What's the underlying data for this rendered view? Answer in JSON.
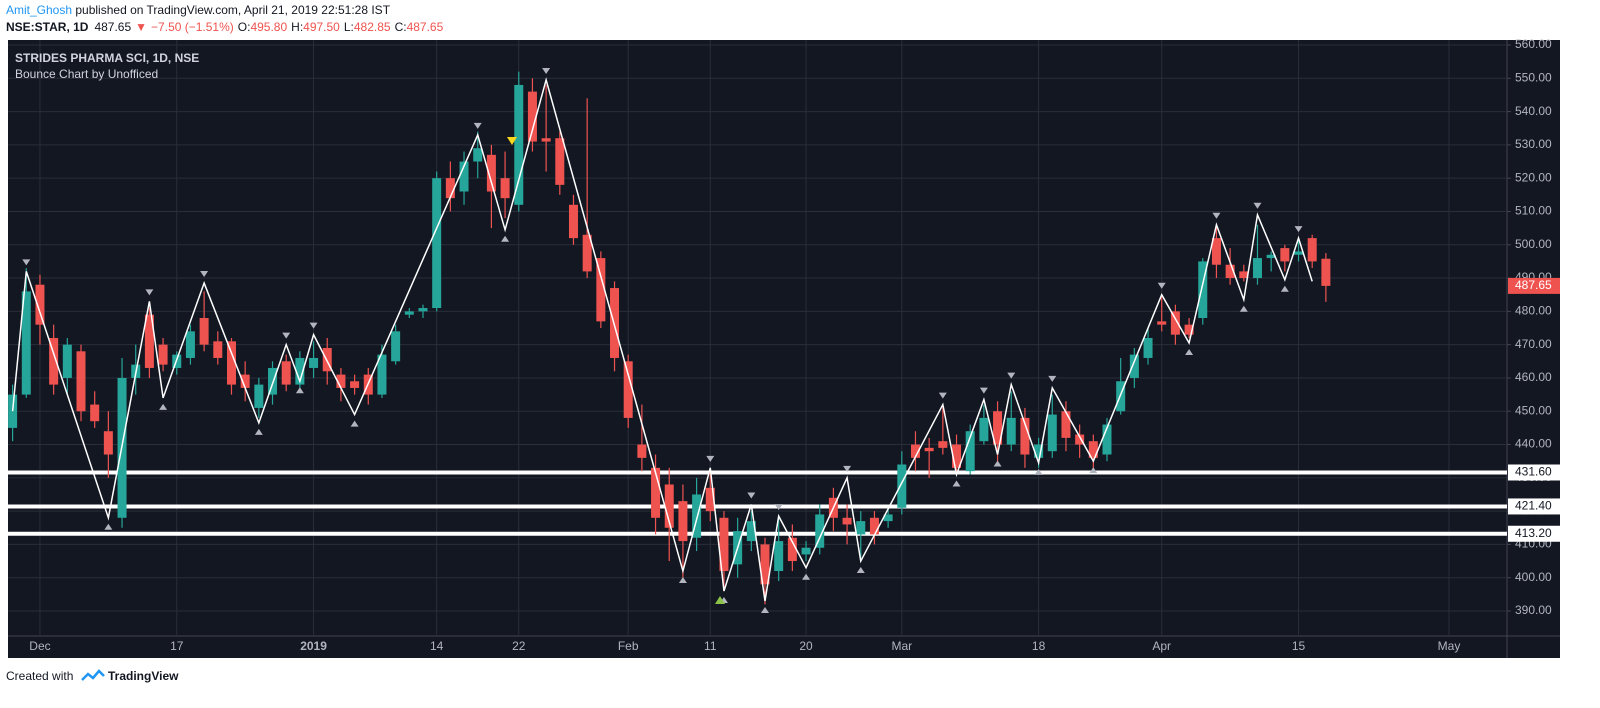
{
  "header": {
    "author": "Amit_Ghosh",
    "published": " published on TradingView.com, April 21, 2019 22:51:28 IST",
    "symbol": "NSE:STAR, 1D",
    "last": "487.65",
    "arrow": "▼",
    "change": "−7.50 (−1.51%)",
    "ohlc": [
      {
        "label": "O:",
        "value": "495.80"
      },
      {
        "label": "H:",
        "value": "497.50"
      },
      {
        "label": "L:",
        "value": "482.85"
      },
      {
        "label": "C:",
        "value": "487.65"
      }
    ]
  },
  "footer": {
    "created": "Created with",
    "brand": "TradingView"
  },
  "chart_data": {
    "type": "candlestick",
    "title": "STRIDES PHARMA SCI, 1D, NSE",
    "subtitle": "Bounce Chart by Unofficed",
    "categories": [
      null,
      null,
      "Dec",
      null,
      null,
      null,
      null,
      null,
      null,
      null,
      null,
      null,
      "17",
      null,
      null,
      null,
      null,
      null,
      null,
      null,
      null,
      null,
      "2019",
      null,
      null,
      null,
      null,
      null,
      null,
      null,
      null,
      "14",
      null,
      null,
      null,
      null,
      null,
      "22",
      null,
      null,
      null,
      null,
      null,
      null,
      null,
      "Feb",
      null,
      null,
      null,
      null,
      null,
      "11",
      null,
      null,
      null,
      null,
      null,
      null,
      "20",
      null,
      null,
      null,
      null,
      null,
      null,
      "Mar",
      null,
      null,
      null,
      null,
      null,
      null,
      null,
      null,
      null,
      "18",
      null,
      null,
      null,
      null,
      null,
      null,
      null,
      null,
      "Apr",
      null,
      null,
      null,
      null,
      null,
      null,
      null,
      null,
      null,
      "15",
      null,
      null,
      null,
      null,
      null,
      null,
      null,
      null,
      null,
      null,
      "May",
      null,
      null,
      null,
      null
    ],
    "open": [
      445,
      455,
      488,
      472,
      460,
      468,
      452,
      444,
      418,
      460,
      479,
      470,
      463,
      466,
      478,
      471,
      471,
      461,
      451,
      455,
      465,
      458,
      463,
      469,
      461,
      459,
      461,
      455,
      465,
      479,
      480,
      481,
      520,
      516,
      525,
      527,
      520,
      512,
      546,
      532,
      532,
      512,
      503,
      496,
      487,
      465,
      440,
      433,
      428,
      423,
      412,
      427,
      418,
      404,
      411,
      410,
      402,
      412,
      407,
      409,
      424,
      418,
      413,
      418,
      417,
      421,
      440,
      439,
      441,
      440,
      432,
      441,
      450,
      440,
      448,
      436,
      438,
      450,
      443,
      441,
      437,
      450,
      460,
      466,
      477,
      480,
      476,
      478,
      502,
      494,
      492,
      490,
      496,
      499,
      497,
      502,
      495.8,
      null,
      null,
      null,
      null,
      null,
      null,
      null,
      null,
      null,
      null,
      null,
      null,
      null
    ],
    "high": [
      458,
      493,
      491,
      476,
      472,
      470,
      456,
      450,
      466,
      470,
      481,
      472,
      468,
      476,
      486,
      474,
      472,
      465,
      460,
      465,
      467,
      468,
      471,
      472,
      463,
      461,
      463,
      470,
      476,
      481,
      482,
      522,
      525,
      528,
      534,
      530,
      528,
      552,
      550,
      548,
      534,
      515,
      544,
      498,
      489,
      467,
      452,
      437,
      433,
      428,
      430,
      432,
      420,
      418,
      420,
      412,
      418,
      416,
      411,
      422,
      427,
      422,
      420,
      420,
      421,
      438,
      444,
      442,
      452,
      443,
      446,
      452,
      453,
      456,
      451,
      442,
      455,
      453,
      446,
      443,
      448,
      466,
      469,
      475,
      485,
      482,
      478,
      496,
      506,
      499,
      494,
      506,
      498,
      500,
      502,
      503,
      497.5,
      null,
      null,
      null,
      null,
      null,
      null,
      null,
      null,
      null,
      null,
      null,
      null,
      null
    ],
    "low": [
      441,
      454,
      470,
      455,
      455,
      447,
      445,
      430,
      415,
      455,
      460,
      462,
      461,
      464,
      468,
      464,
      455,
      453,
      448,
      452,
      456,
      456,
      460,
      458,
      453,
      455,
      452,
      454,
      464,
      478,
      478,
      480,
      510,
      512,
      520,
      505,
      508,
      510,
      528,
      522,
      515,
      500,
      490,
      475,
      462,
      445,
      432,
      413,
      405,
      400,
      408,
      417,
      396,
      400,
      408,
      392,
      399,
      402,
      405,
      407,
      414,
      410,
      405,
      410,
      415,
      419,
      432,
      430,
      437,
      431,
      431,
      440,
      434,
      438,
      433,
      433,
      436,
      438,
      436,
      433,
      435,
      449,
      457,
      464,
      474,
      470,
      472,
      476,
      490,
      488,
      489,
      488,
      492,
      492,
      495,
      493,
      482.85,
      null,
      null,
      null,
      null,
      null,
      null,
      null,
      null,
      null,
      null,
      null,
      null,
      null
    ],
    "close": [
      455,
      486,
      476,
      458,
      470,
      450,
      447,
      437,
      460,
      464,
      463,
      464,
      467,
      474,
      470,
      466,
      458,
      457,
      458,
      463,
      458,
      466,
      466,
      462,
      457,
      457,
      455,
      467,
      474,
      480,
      481,
      520,
      514,
      525,
      529,
      516,
      514,
      548,
      531,
      531,
      518,
      502,
      492,
      477,
      466,
      448,
      436,
      418,
      415,
      411,
      425,
      420,
      402,
      414,
      417,
      398,
      411,
      405,
      409,
      419,
      418,
      416,
      417,
      413,
      419,
      434,
      436,
      438,
      439,
      433,
      444,
      448,
      440,
      448,
      437,
      440,
      449,
      442,
      440,
      436,
      446,
      459,
      467,
      472,
      476,
      473,
      473,
      495,
      494,
      490,
      490,
      496,
      497,
      495,
      498,
      495,
      487.65,
      null,
      null,
      null,
      null,
      null,
      null,
      null,
      null,
      null,
      null,
      null,
      null,
      null
    ],
    "up_color": "#26a69a",
    "down_color": "#ef5350",
    "zigzag": {
      "color": "#ffffff",
      "x": [
        0,
        1,
        7,
        10,
        11,
        14,
        18,
        20,
        21,
        22,
        25,
        34,
        36,
        39,
        49,
        51,
        52,
        54,
        55,
        56,
        58,
        61,
        62,
        68,
        69,
        71,
        72,
        73,
        75,
        76,
        79,
        84,
        86,
        88,
        90,
        91,
        93,
        94,
        95
      ],
      "values": [
        450,
        492,
        418,
        483,
        454,
        488.5,
        446.5,
        470,
        459,
        473,
        449,
        533,
        504.5,
        549.5,
        402,
        433,
        396,
        422,
        393,
        418.5,
        403,
        430,
        405,
        452,
        431,
        453.5,
        437,
        458,
        434.5,
        457,
        435,
        485,
        470.5,
        506,
        483.5,
        509,
        489.5,
        502,
        489
      ]
    },
    "levels": [
      {
        "value": 431.6,
        "label": "431.60"
      },
      {
        "value": 421.4,
        "label": "421.40"
      },
      {
        "value": 413.2,
        "label": "413.20"
      }
    ],
    "ylim": [
      390,
      560
    ],
    "yticks": [
      {
        "value": 390,
        "label": "390.00"
      },
      {
        "value": 400,
        "label": "400.00"
      },
      {
        "value": 410,
        "label": "410.00"
      },
      {
        "value": 420,
        "label": "420.00"
      },
      {
        "value": 430,
        "label": "430.00"
      },
      {
        "value": 440,
        "label": "440.00"
      },
      {
        "value": 450,
        "label": "450.00"
      },
      {
        "value": 460,
        "label": "460.00"
      },
      {
        "value": 470,
        "label": "470.00"
      },
      {
        "value": 480,
        "label": "480.00"
      },
      {
        "value": 490,
        "label": "490.00"
      },
      {
        "value": 500,
        "label": "500.00"
      },
      {
        "value": 510,
        "label": "510.00"
      },
      {
        "value": 520,
        "label": "520.00"
      },
      {
        "value": 530,
        "label": "530.00"
      },
      {
        "value": 540,
        "label": "540.00"
      },
      {
        "value": 550,
        "label": "550.00"
      },
      {
        "value": 560,
        "label": "560.00"
      }
    ],
    "grid": true
  }
}
